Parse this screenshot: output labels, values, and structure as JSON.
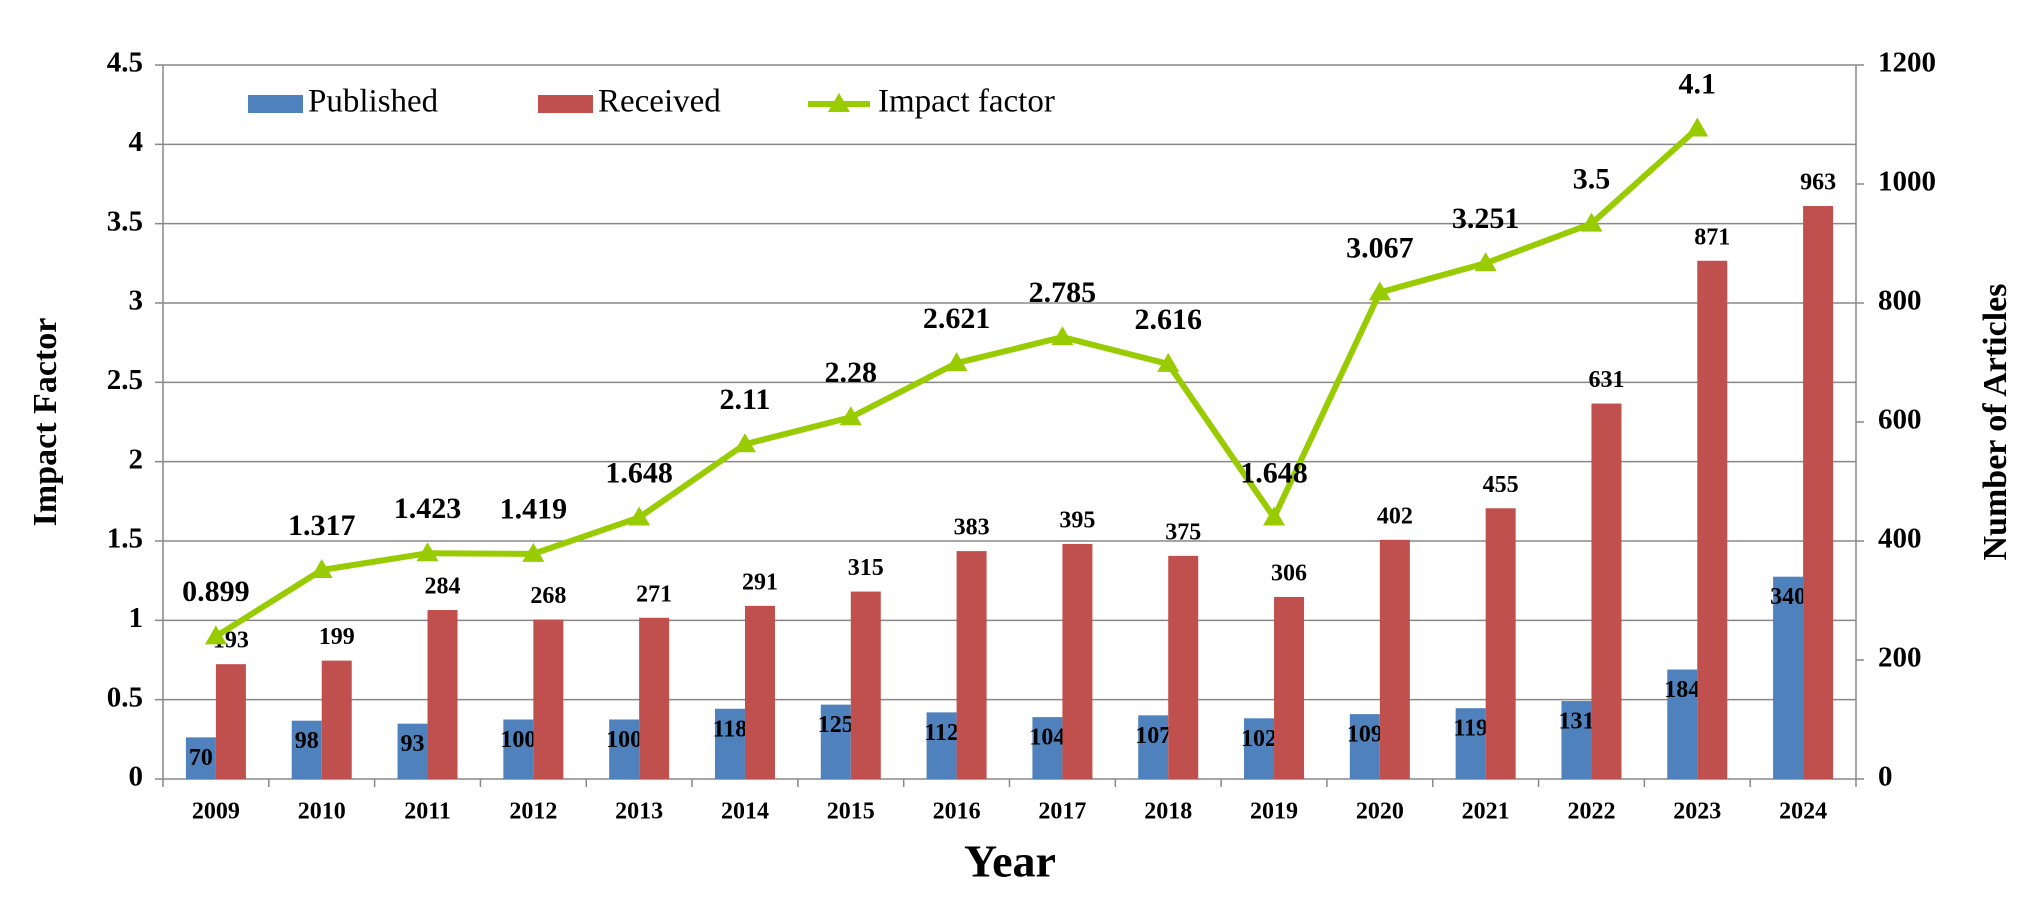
{
  "chart_data": {
    "type": "bar_line",
    "x_label": "Year",
    "y_label": "Impact Factor",
    "y2_label": "Number of Articles",
    "categories": [
      "2009",
      "2010",
      "2011",
      "2012",
      "2013",
      "2014",
      "2015",
      "2016",
      "2017",
      "2018",
      "2019",
      "2020",
      "2021",
      "2022",
      "2023",
      "2024"
    ],
    "series": [
      {
        "name": "Published",
        "type": "bar",
        "axis": "y2",
        "color": "#4f81bd",
        "values": [
          70,
          98,
          93,
          100,
          100,
          118,
          125,
          112,
          104,
          107,
          102,
          109,
          119,
          131,
          184,
          340
        ]
      },
      {
        "name": "Received",
        "type": "bar",
        "axis": "y2",
        "color": "#c0504d",
        "values": [
          193,
          199,
          284,
          268,
          271,
          291,
          315,
          383,
          395,
          375,
          306,
          402,
          455,
          631,
          871,
          963
        ]
      },
      {
        "name": "Impact factor",
        "type": "line",
        "axis": "y",
        "color": "#99cc00",
        "values": [
          0.899,
          1.317,
          1.423,
          1.419,
          1.648,
          2.11,
          2.28,
          2.621,
          2.785,
          2.616,
          1.648,
          3.067,
          3.251,
          3.5,
          4.1,
          null
        ]
      }
    ],
    "ylim": [
      0,
      4.5
    ],
    "yticks": [
      0,
      0.5,
      1,
      1.5,
      2,
      2.5,
      3,
      3.5,
      4,
      4.5
    ],
    "y2lim": [
      0,
      1200
    ],
    "y2ticks": [
      0,
      200,
      400,
      600,
      800,
      1000,
      1200
    ],
    "grid": true,
    "legend": "top-left"
  }
}
